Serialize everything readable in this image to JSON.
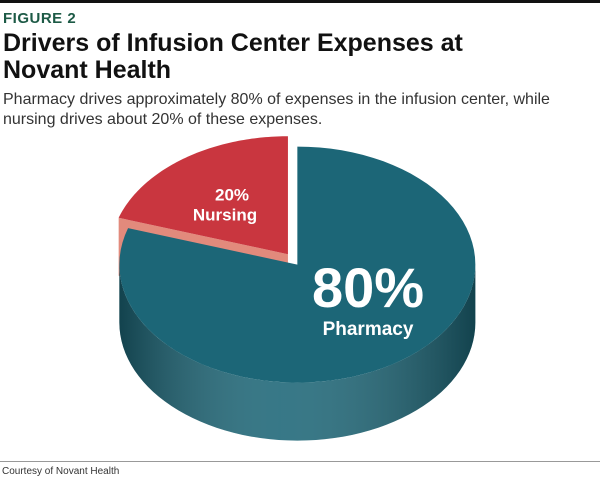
{
  "figure_label": "FIGURE 2",
  "source": "Courtesy of Novant Health",
  "chart_data": {
    "type": "pie",
    "title": "Drivers of Infusion Center Expenses at Novant Health",
    "subtitle": "Pharmacy drives approximately 80% of expenses in the infusion center, while nursing drives about 20% of these expenses.",
    "categories": [
      "Nursing",
      "Pharmacy"
    ],
    "values": [
      20,
      80
    ],
    "value_labels": [
      "20%",
      "80%"
    ],
    "colors": [
      "#c9363f",
      "#1c6677"
    ]
  }
}
